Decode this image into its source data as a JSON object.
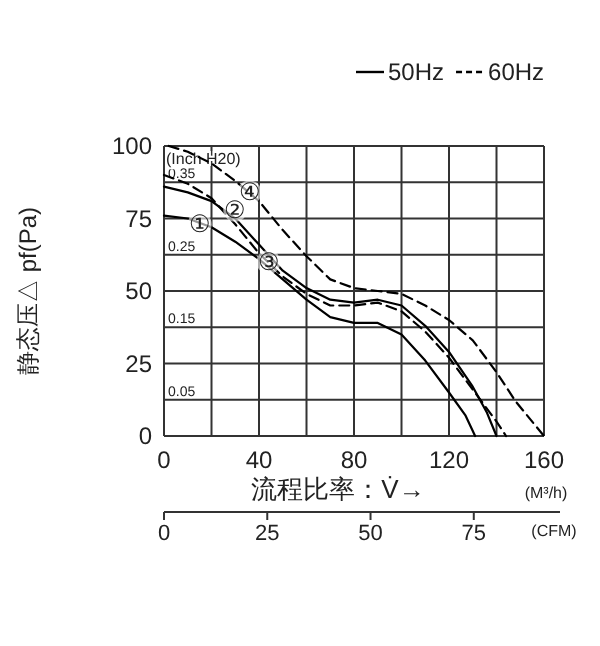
{
  "chart_data": {
    "type": "line",
    "xlabel": "流程比率：V̇→",
    "ylabel": "静态压△ pf(Pa)",
    "y2label": "(Inch H20)",
    "x2label": "(CFM)",
    "xlim": [
      0,
      160
    ],
    "xticks": [
      0,
      {
        "value": 20,
        "label": null
      },
      40,
      {
        "value": 60,
        "label": null
      },
      80,
      {
        "value": 100,
        "label": null
      },
      120,
      {
        "value": 140,
        "label": null
      },
      160
    ],
    "ylim": [
      0,
      100
    ],
    "yticks": [
      0,
      25,
      50,
      75,
      100
    ],
    "y2lim": [
      0,
      0.4
    ],
    "y2ticks": [
      0.05,
      0.15,
      0.25,
      0.35
    ],
    "x2lim": [
      0,
      92
    ],
    "x2ticks": [
      0,
      25,
      50,
      75
    ],
    "grid": true,
    "legend": "top right",
    "series": [
      {
        "name": "50Hz",
        "color": "#000000",
        "line_style": "solid",
        "x": [
          0,
          10,
          20,
          30,
          40,
          50,
          60,
          70,
          80,
          90,
          100,
          110,
          120,
          127,
          131
        ],
        "values": [
          76,
          75,
          72,
          67,
          61,
          54,
          47,
          41,
          39,
          39,
          35,
          26,
          15,
          7,
          0
        ]
      },
      {
        "color": "#000000",
        "line_style": "solid",
        "x": [
          0,
          10,
          20,
          30,
          40,
          50,
          60,
          70,
          80,
          90,
          100,
          110,
          120,
          130,
          136,
          140
        ],
        "values": [
          86,
          84,
          81,
          75,
          66,
          57,
          51,
          47,
          46,
          47,
          45,
          38,
          29,
          17,
          8,
          0
        ]
      },
      {
        "color": "#000000",
        "line_style": "dashed",
        "x": [
          0,
          10,
          20,
          30,
          40,
          50,
          60,
          70,
          80,
          90,
          100,
          110,
          120,
          130,
          140,
          144
        ],
        "values": [
          90,
          87,
          82,
          73,
          63,
          55,
          49,
          45,
          45,
          46,
          43,
          36,
          27,
          16,
          5,
          0
        ]
      },
      {
        "name": "60Hz",
        "color": "#000000",
        "line_style": "dashed",
        "x": [
          2,
          10,
          20,
          30,
          40,
          50,
          60,
          70,
          80,
          90,
          100,
          110,
          120,
          130,
          140,
          148,
          160
        ],
        "values": [
          100,
          98,
          94,
          88,
          81,
          71,
          62,
          54,
          51,
          50,
          49,
          45,
          40,
          33,
          22,
          12,
          0
        ]
      }
    ],
    "annotations": [
      {
        "text": "①",
        "x": 15,
        "y": 73
      },
      {
        "text": "②",
        "x": 30,
        "y": 78
      },
      {
        "text": "③",
        "x": 44,
        "y": 60
      },
      {
        "text": "④",
        "x": 36,
        "y": 84
      },
      "(M³/h)"
    ]
  }
}
